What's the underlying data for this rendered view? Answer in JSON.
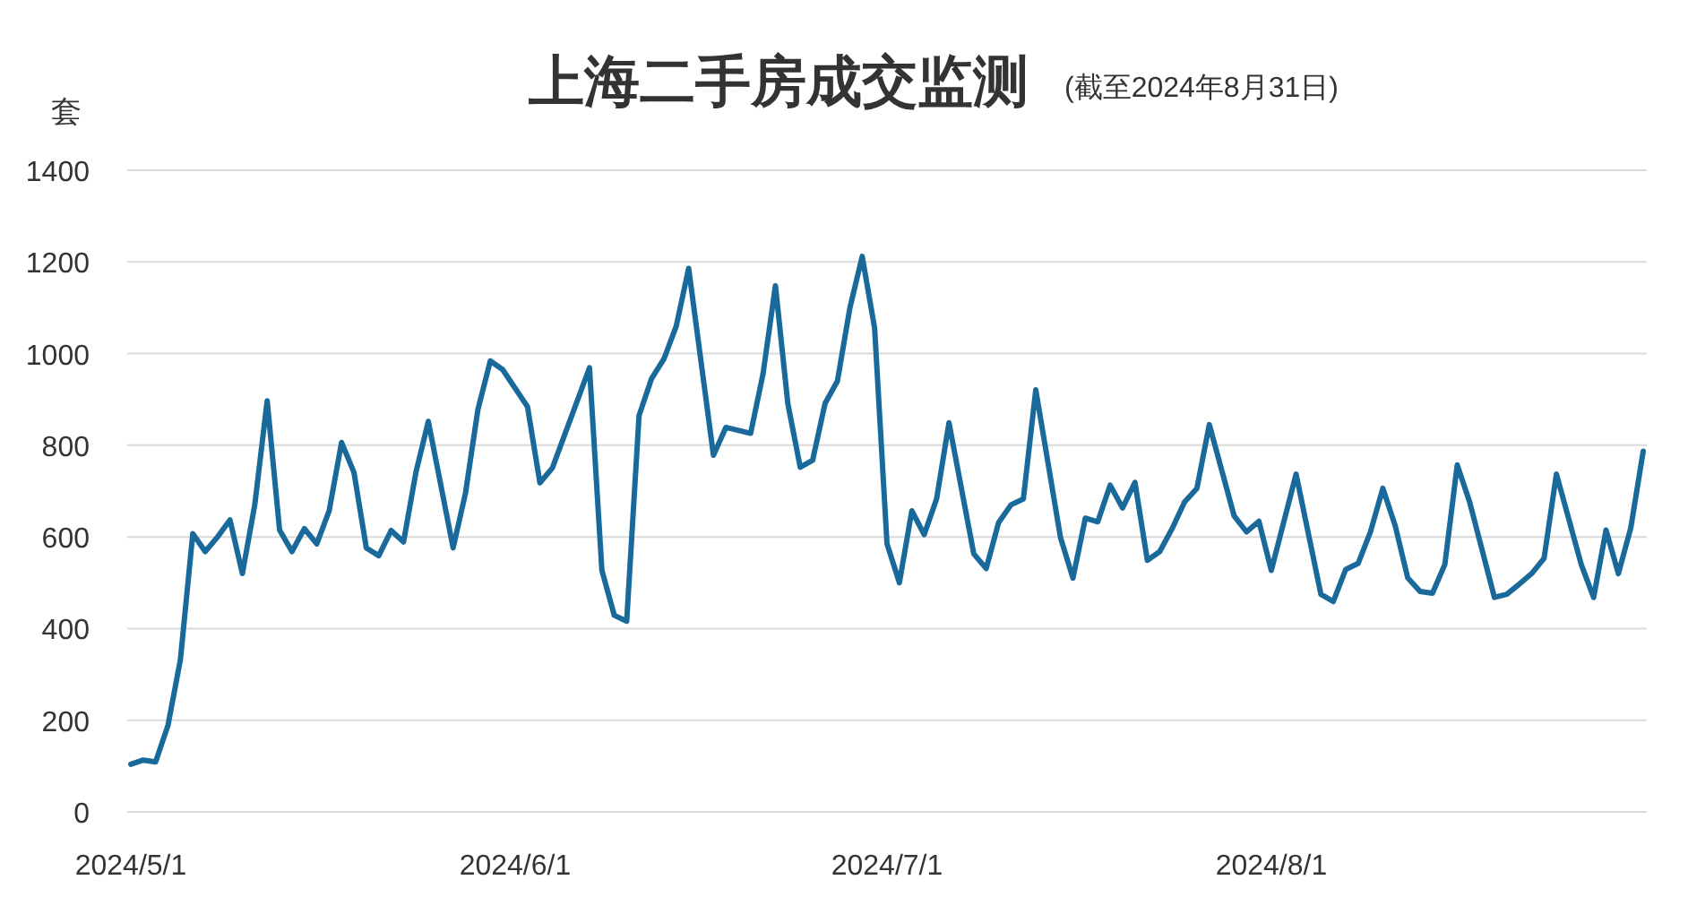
{
  "chart_data": {
    "type": "line",
    "title": "上海二手房成交监测",
    "subtitle": "(截至2024年8月31日)",
    "ylabel": "套",
    "color": "#19699a",
    "x": [
      "2024-05-01",
      "2024-05-02",
      "2024-05-03",
      "2024-05-04",
      "2024-05-05",
      "2024-05-06",
      "2024-05-07",
      "2024-05-08",
      "2024-05-09",
      "2024-05-10",
      "2024-05-11",
      "2024-05-12",
      "2024-05-13",
      "2024-05-14",
      "2024-05-15",
      "2024-05-16",
      "2024-05-17",
      "2024-05-18",
      "2024-05-19",
      "2024-05-20",
      "2024-05-21",
      "2024-05-22",
      "2024-05-23",
      "2024-05-24",
      "2024-05-25",
      "2024-05-27",
      "2024-05-28",
      "2024-05-29",
      "2024-05-30",
      "2024-05-31",
      "2024-06-02",
      "2024-06-03",
      "2024-06-04",
      "2024-06-07",
      "2024-06-08",
      "2024-06-09",
      "2024-06-10",
      "2024-06-11",
      "2024-06-12",
      "2024-06-13",
      "2024-06-14",
      "2024-06-15",
      "2024-06-17",
      "2024-06-18",
      "2024-06-20",
      "2024-06-21",
      "2024-06-22",
      "2024-06-23",
      "2024-06-24",
      "2024-06-25",
      "2024-06-26",
      "2024-06-27",
      "2024-06-28",
      "2024-06-29",
      "2024-06-30",
      "2024-07-01",
      "2024-07-02",
      "2024-07-03",
      "2024-07-04",
      "2024-07-05",
      "2024-07-06",
      "2024-07-08",
      "2024-07-09",
      "2024-07-10",
      "2024-07-11",
      "2024-07-12",
      "2024-07-13",
      "2024-07-15",
      "2024-07-16",
      "2024-07-17",
      "2024-07-18",
      "2024-07-19",
      "2024-07-20",
      "2024-07-21",
      "2024-07-22",
      "2024-07-23",
      "2024-07-24",
      "2024-07-25",
      "2024-07-26",
      "2024-07-27",
      "2024-07-29",
      "2024-07-30",
      "2024-07-31",
      "2024-08-01",
      "2024-08-03",
      "2024-08-05",
      "2024-08-06",
      "2024-08-07",
      "2024-08-08",
      "2024-08-09",
      "2024-08-10",
      "2024-08-11",
      "2024-08-12",
      "2024-08-13",
      "2024-08-14",
      "2024-08-15",
      "2024-08-16",
      "2024-08-17",
      "2024-08-19",
      "2024-08-20",
      "2024-08-21",
      "2024-08-22",
      "2024-08-23",
      "2024-08-24",
      "2024-08-26",
      "2024-08-27",
      "2024-08-28",
      "2024-08-29",
      "2024-08-30",
      "2024-08-31"
    ],
    "values": [
      104,
      113,
      109,
      189,
      332,
      607,
      568,
      600,
      637,
      520,
      670,
      897,
      615,
      568,
      618,
      585,
      657,
      806,
      741,
      576,
      559,
      614,
      589,
      741,
      852,
      576,
      696,
      878,
      984,
      965,
      884,
      718,
      750,
      969,
      527,
      429,
      416,
      865,
      945,
      988,
      1060,
      1186,
      778,
      839,
      826,
      956,
      1148,
      891,
      752,
      767,
      891,
      940,
      1099,
      1212,
      1056,
      585,
      500,
      657,
      605,
      683,
      849,
      563,
      531,
      631,
      670,
      683,
      921,
      598,
      510,
      641,
      633,
      713,
      663,
      719,
      549,
      568,
      618,
      676,
      706,
      845,
      646,
      611,
      634,
      527,
      737,
      475,
      459,
      529,
      542,
      611,
      706,
      624,
      511,
      481,
      477,
      540,
      757,
      676,
      468,
      475,
      497,
      520,
      553,
      737,
      540,
      468,
      615,
      520,
      620,
      787
    ],
    "xlim": [
      "2024-05-01",
      "2024-08-31"
    ],
    "xticks": [
      {
        "value": "2024-05-01",
        "label": "2024/5/1"
      },
      {
        "value": "2024-06-01",
        "label": "2024/6/1"
      },
      {
        "value": "2024-07-01",
        "label": "2024/7/1"
      },
      {
        "value": "2024-08-01",
        "label": "2024/8/1"
      }
    ],
    "ylim": [
      0,
      1400
    ],
    "yticks": [
      0,
      200,
      400,
      600,
      800,
      1000,
      1200,
      1400
    ],
    "grid": "y"
  }
}
